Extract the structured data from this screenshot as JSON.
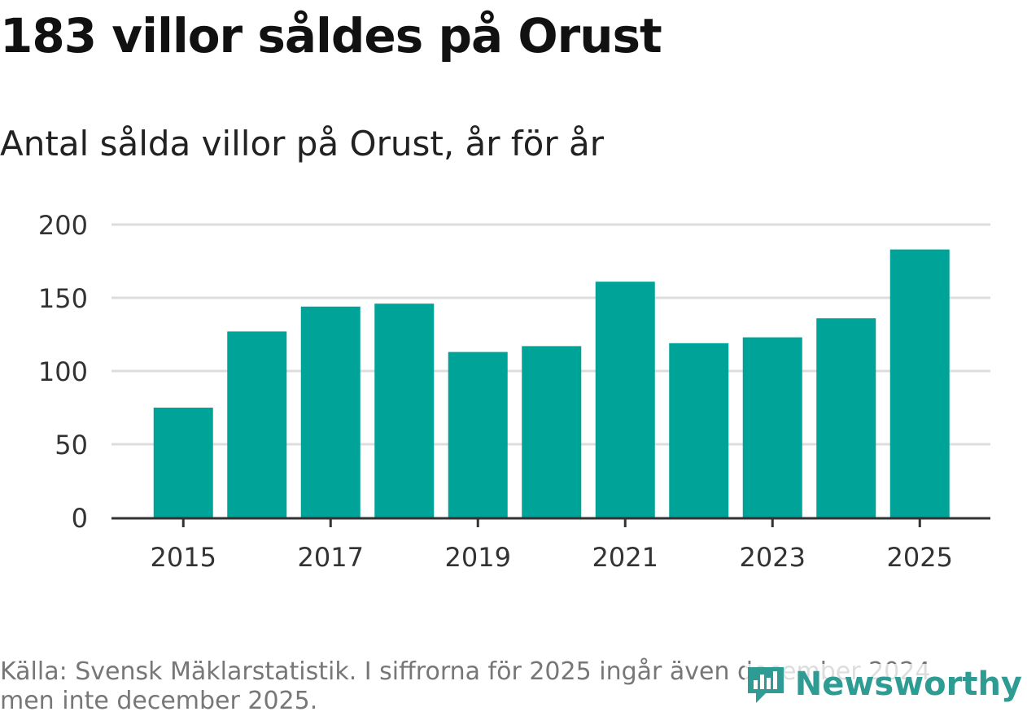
{
  "title": "183 villor såldes på Orust",
  "subtitle": "Antal sålda villor på Orust, år för år",
  "source": "Källa: Svensk Mäklarstatistik. I siffrorna för 2025 ingår även december 2024, men inte december 2025.",
  "logo": {
    "text": "Newsworthy",
    "icon": "bar-chart-logo-icon"
  },
  "colors": {
    "bar": "#00a398",
    "grid": "#dddddd",
    "axis": "#333333",
    "logo": "#2f9c94"
  },
  "chart_data": {
    "type": "bar",
    "title": "Antal sålda villor på Orust, år för år",
    "xlabel": "",
    "ylabel": "",
    "categories": [
      "2015",
      "2016",
      "2017",
      "2018",
      "2019",
      "2020",
      "2021",
      "2022",
      "2023",
      "2024",
      "2025"
    ],
    "values": [
      75,
      127,
      144,
      146,
      113,
      117,
      161,
      119,
      123,
      136,
      183
    ],
    "ylim": [
      0,
      200
    ],
    "yticks": [
      0,
      50,
      100,
      150,
      200
    ],
    "xtick_labels": [
      "2015",
      "2017",
      "2019",
      "2021",
      "2023",
      "2025"
    ],
    "grid": true
  }
}
